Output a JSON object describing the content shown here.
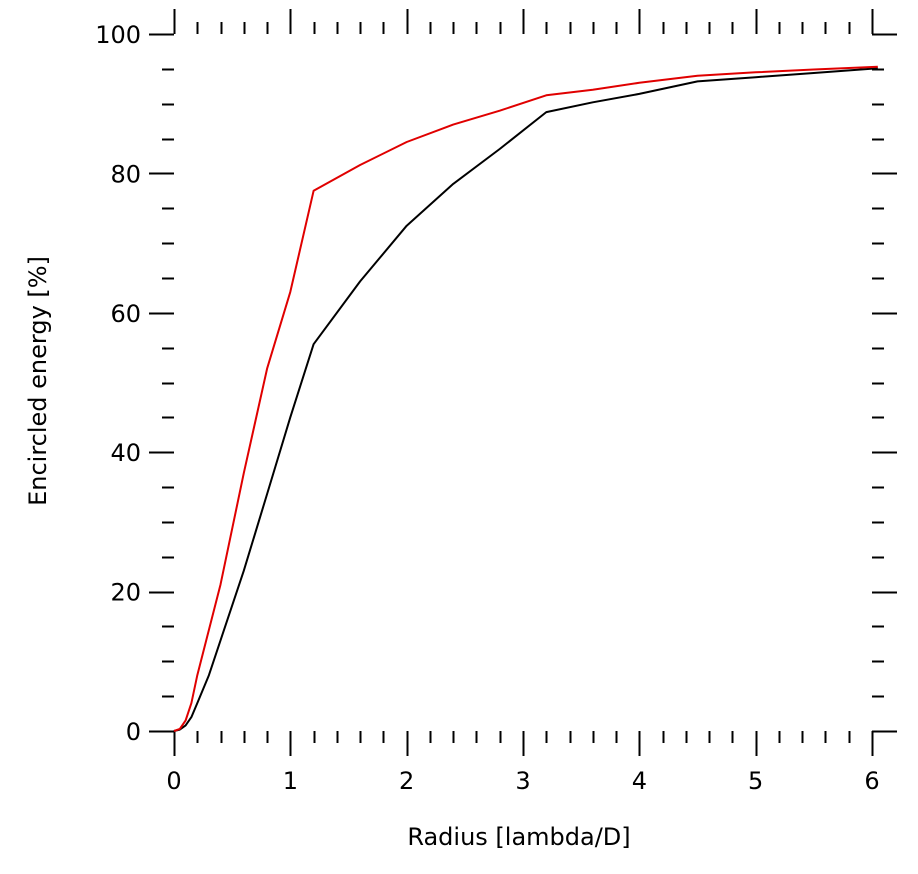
{
  "chart_data": {
    "type": "line",
    "title": "",
    "xlabel": "Radius [lambda/D]",
    "ylabel": "Encircled energy [%]",
    "xlim": [
      0,
      6
    ],
    "ylim": [
      0,
      100
    ],
    "x_ticks": [
      0,
      1,
      2,
      3,
      4,
      5,
      6
    ],
    "x_tick_labels": [
      "0",
      "1",
      "2",
      "3",
      "4",
      "5",
      "6"
    ],
    "y_ticks": [
      0,
      20,
      40,
      60,
      80,
      100
    ],
    "y_tick_labels": [
      "0",
      "20",
      "40",
      "60",
      "80",
      "100"
    ],
    "x_minor_step": 0.2,
    "y_minor_step": 5,
    "grid": false,
    "ticks_mirrored": true,
    "series": [
      {
        "color": "#000000",
        "x": [
          0.0,
          0.05,
          0.1,
          0.15,
          0.2,
          0.3,
          0.4,
          0.6,
          0.8,
          1.0,
          1.2,
          1.6,
          2.0,
          2.4,
          2.8,
          3.2,
          3.6,
          4.0,
          4.5,
          5.0,
          5.5,
          6.05
        ],
        "y": [
          0.0,
          0.2,
          0.8,
          2.0,
          4.0,
          8.0,
          13.0,
          23.0,
          34.0,
          45.0,
          55.5,
          64.5,
          72.5,
          78.5,
          83.5,
          88.8,
          90.2,
          91.4,
          93.2,
          93.8,
          94.4,
          95.1
        ]
      },
      {
        "color": "#e00000",
        "x": [
          0.0,
          0.05,
          0.1,
          0.15,
          0.2,
          0.4,
          0.6,
          0.8,
          1.0,
          1.2,
          1.6,
          2.0,
          2.4,
          2.8,
          3.2,
          3.6,
          4.0,
          4.5,
          5.0,
          5.5,
          6.05
        ],
        "y": [
          0.0,
          0.3,
          1.5,
          4.0,
          8.0,
          21.0,
          37.0,
          52.0,
          63.0,
          77.5,
          81.2,
          84.5,
          87.0,
          89.0,
          91.2,
          92.0,
          93.0,
          94.0,
          94.5,
          94.9,
          95.3
        ]
      }
    ]
  }
}
